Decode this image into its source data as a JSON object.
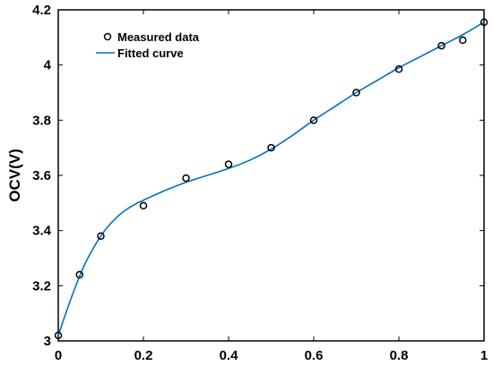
{
  "chart_data": {
    "type": "scatter",
    "title": "",
    "xlabel": "",
    "ylabel": "OCV(V)",
    "xlim": [
      0,
      1
    ],
    "ylim": [
      3,
      4.2
    ],
    "xticks": [
      "0",
      "0.2",
      "0.4",
      "0.6",
      "0.8",
      "1"
    ],
    "yticks": [
      "3",
      "3.2",
      "3.4",
      "3.6",
      "3.8",
      "4",
      "4.2"
    ],
    "grid": false,
    "legend_position": "top-left",
    "series": [
      {
        "name": "Measured data",
        "kind": "markers",
        "marker": "circle",
        "color": "#000000",
        "x": [
          0,
          0.05,
          0.1,
          0.2,
          0.3,
          0.4,
          0.5,
          0.6,
          0.7,
          0.8,
          0.9,
          0.95,
          1.0
        ],
        "y": [
          3.02,
          3.24,
          3.38,
          3.49,
          3.59,
          3.64,
          3.7,
          3.8,
          3.9,
          3.985,
          4.07,
          4.09,
          4.155
        ]
      },
      {
        "name": "Fitted curve",
        "kind": "line",
        "color": "#0072BD",
        "x": [
          0,
          0.02,
          0.04,
          0.06,
          0.08,
          0.1,
          0.12,
          0.15,
          0.18,
          0.2,
          0.25,
          0.3,
          0.35,
          0.4,
          0.45,
          0.5,
          0.55,
          0.6,
          0.65,
          0.7,
          0.75,
          0.8,
          0.85,
          0.9,
          0.95,
          1.0
        ],
        "y": [
          3.02,
          3.11,
          3.195,
          3.27,
          3.33,
          3.38,
          3.42,
          3.465,
          3.495,
          3.51,
          3.545,
          3.575,
          3.6,
          3.625,
          3.655,
          3.695,
          3.745,
          3.8,
          3.85,
          3.9,
          3.945,
          3.99,
          4.03,
          4.07,
          4.11,
          4.155
        ]
      }
    ]
  }
}
